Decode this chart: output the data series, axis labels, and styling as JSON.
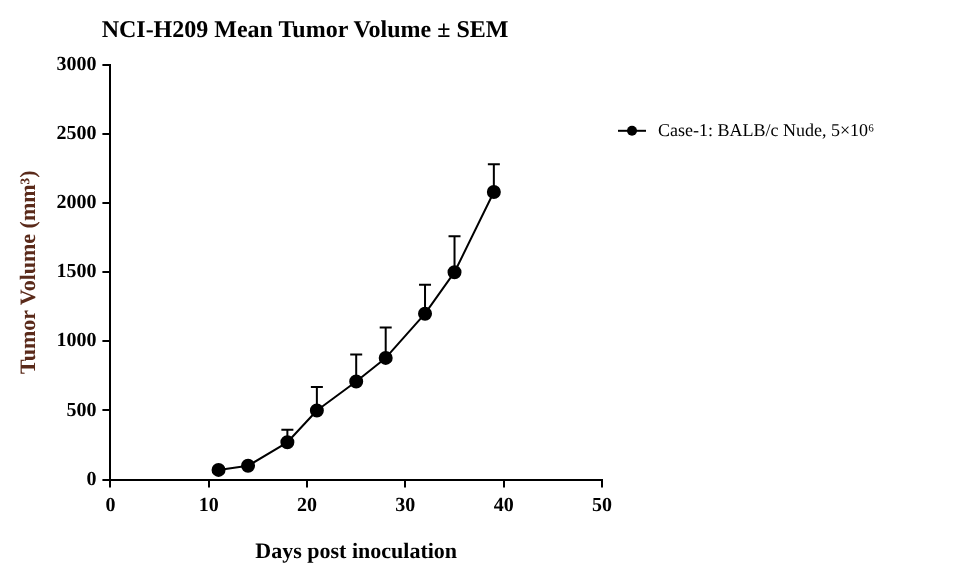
{
  "chart_data": {
    "type": "line",
    "title": "NCI-H209 Mean Tumor Volume ± SEM",
    "xlabel": "Days post inoculation",
    "ylabel": "Tumor Volume (mm³)",
    "x": [
      11,
      14,
      18,
      21,
      25,
      28,
      32,
      35,
      39
    ],
    "series": [
      {
        "name": "Case-1: BALB/c Nude, 5×10⁶",
        "color": "#000000",
        "values": [
          70,
          100,
          270,
          500,
          710,
          880,
          1200,
          1500,
          2080
        ],
        "errors": [
          null,
          null,
          [
            270,
            360
          ],
          [
            500,
            670
          ],
          [
            710,
            905
          ],
          [
            880,
            1100
          ],
          [
            1200,
            1410
          ],
          [
            1500,
            1760
          ],
          [
            2080,
            2280
          ]
        ]
      }
    ],
    "xlim": [
      0,
      50
    ],
    "xticks": [
      0,
      10,
      20,
      30,
      40,
      50
    ],
    "ylim": [
      0,
      3000
    ],
    "yticks": [
      0,
      500,
      1000,
      1500,
      2000,
      2500,
      3000
    ],
    "grid": false,
    "legend": "top right",
    "marker": "circle",
    "line_style": "solid"
  }
}
